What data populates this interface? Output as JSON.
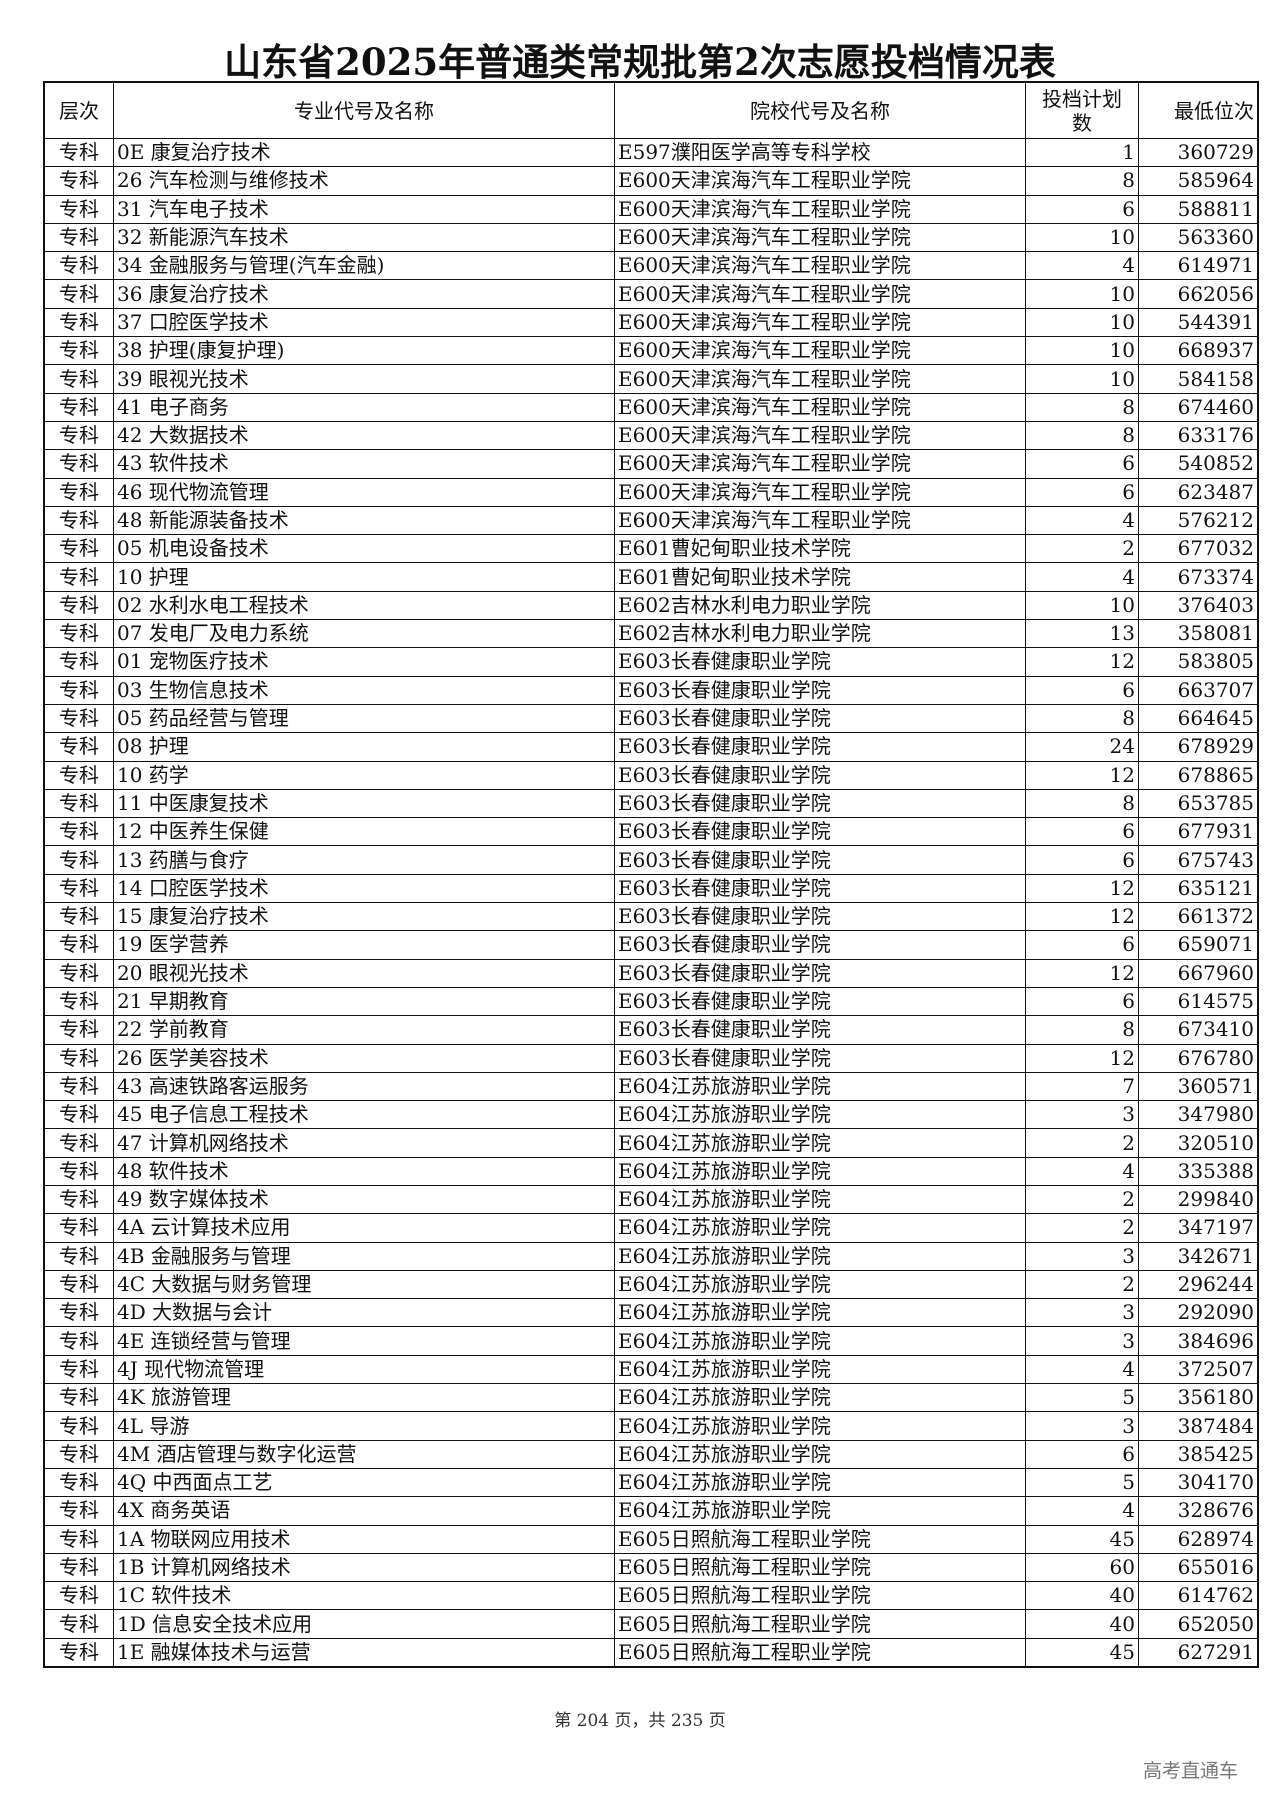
{
  "title": "山东省2025年普通类常规批第2次志愿投档情况表",
  "headers": [
    "层次",
    "专业代号及名称",
    "院校代号及名称",
    "投档计划数",
    "最低位次"
  ],
  "rows": [
    [
      "专科",
      "0E 康复治疗技术",
      "E597濮阳医学高等专科学校",
      "1",
      "360729"
    ],
    [
      "专科",
      "26 汽车检测与维修技术",
      "E600天津滨海汽车工程职业学院",
      "8",
      "585964"
    ],
    [
      "专科",
      "31 汽车电子技术",
      "E600天津滨海汽车工程职业学院",
      "6",
      "588811"
    ],
    [
      "专科",
      "32 新能源汽车技术",
      "E600天津滨海汽车工程职业学院",
      "10",
      "563360"
    ],
    [
      "专科",
      "34 金融服务与管理(汽车金融)",
      "E600天津滨海汽车工程职业学院",
      "4",
      "614971"
    ],
    [
      "专科",
      "36 康复治疗技术",
      "E600天津滨海汽车工程职业学院",
      "10",
      "662056"
    ],
    [
      "专科",
      "37 口腔医学技术",
      "E600天津滨海汽车工程职业学院",
      "10",
      "544391"
    ],
    [
      "专科",
      "38 护理(康复护理)",
      "E600天津滨海汽车工程职业学院",
      "10",
      "668937"
    ],
    [
      "专科",
      "39 眼视光技术",
      "E600天津滨海汽车工程职业学院",
      "10",
      "584158"
    ],
    [
      "专科",
      "41 电子商务",
      "E600天津滨海汽车工程职业学院",
      "8",
      "674460"
    ],
    [
      "专科",
      "42 大数据技术",
      "E600天津滨海汽车工程职业学院",
      "8",
      "633176"
    ],
    [
      "专科",
      "43 软件技术",
      "E600天津滨海汽车工程职业学院",
      "6",
      "540852"
    ],
    [
      "专科",
      "46 现代物流管理",
      "E600天津滨海汽车工程职业学院",
      "6",
      "623487"
    ],
    [
      "专科",
      "48 新能源装备技术",
      "E600天津滨海汽车工程职业学院",
      "4",
      "576212"
    ],
    [
      "专科",
      "05 机电设备技术",
      "E601曹妃甸职业技术学院",
      "2",
      "677032"
    ],
    [
      "专科",
      "10 护理",
      "E601曹妃甸职业技术学院",
      "4",
      "673374"
    ],
    [
      "专科",
      "02 水利水电工程技术",
      "E602吉林水利电力职业学院",
      "10",
      "376403"
    ],
    [
      "专科",
      "07 发电厂及电力系统",
      "E602吉林水利电力职业学院",
      "13",
      "358081"
    ],
    [
      "专科",
      "01 宠物医疗技术",
      "E603长春健康职业学院",
      "12",
      "583805"
    ],
    [
      "专科",
      "03 生物信息技术",
      "E603长春健康职业学院",
      "6",
      "663707"
    ],
    [
      "专科",
      "05 药品经营与管理",
      "E603长春健康职业学院",
      "8",
      "664645"
    ],
    [
      "专科",
      "08 护理",
      "E603长春健康职业学院",
      "24",
      "678929"
    ],
    [
      "专科",
      "10 药学",
      "E603长春健康职业学院",
      "12",
      "678865"
    ],
    [
      "专科",
      "11 中医康复技术",
      "E603长春健康职业学院",
      "8",
      "653785"
    ],
    [
      "专科",
      "12 中医养生保健",
      "E603长春健康职业学院",
      "6",
      "677931"
    ],
    [
      "专科",
      "13 药膳与食疗",
      "E603长春健康职业学院",
      "6",
      "675743"
    ],
    [
      "专科",
      "14 口腔医学技术",
      "E603长春健康职业学院",
      "12",
      "635121"
    ],
    [
      "专科",
      "15 康复治疗技术",
      "E603长春健康职业学院",
      "12",
      "661372"
    ],
    [
      "专科",
      "19 医学营养",
      "E603长春健康职业学院",
      "6",
      "659071"
    ],
    [
      "专科",
      "20 眼视光技术",
      "E603长春健康职业学院",
      "12",
      "667960"
    ],
    [
      "专科",
      "21 早期教育",
      "E603长春健康职业学院",
      "6",
      "614575"
    ],
    [
      "专科",
      "22 学前教育",
      "E603长春健康职业学院",
      "8",
      "673410"
    ],
    [
      "专科",
      "26 医学美容技术",
      "E603长春健康职业学院",
      "12",
      "676780"
    ],
    [
      "专科",
      "43 高速铁路客运服务",
      "E604江苏旅游职业学院",
      "7",
      "360571"
    ],
    [
      "专科",
      "45 电子信息工程技术",
      "E604江苏旅游职业学院",
      "3",
      "347980"
    ],
    [
      "专科",
      "47 计算机网络技术",
      "E604江苏旅游职业学院",
      "2",
      "320510"
    ],
    [
      "专科",
      "48 软件技术",
      "E604江苏旅游职业学院",
      "4",
      "335388"
    ],
    [
      "专科",
      "49 数字媒体技术",
      "E604江苏旅游职业学院",
      "2",
      "299840"
    ],
    [
      "专科",
      "4A 云计算技术应用",
      "E604江苏旅游职业学院",
      "2",
      "347197"
    ],
    [
      "专科",
      "4B 金融服务与管理",
      "E604江苏旅游职业学院",
      "3",
      "342671"
    ],
    [
      "专科",
      "4C 大数据与财务管理",
      "E604江苏旅游职业学院",
      "2",
      "296244"
    ],
    [
      "专科",
      "4D 大数据与会计",
      "E604江苏旅游职业学院",
      "3",
      "292090"
    ],
    [
      "专科",
      "4E 连锁经营与管理",
      "E604江苏旅游职业学院",
      "3",
      "384696"
    ],
    [
      "专科",
      "4J 现代物流管理",
      "E604江苏旅游职业学院",
      "4",
      "372507"
    ],
    [
      "专科",
      "4K 旅游管理",
      "E604江苏旅游职业学院",
      "5",
      "356180"
    ],
    [
      "专科",
      "4L 导游",
      "E604江苏旅游职业学院",
      "3",
      "387484"
    ],
    [
      "专科",
      "4M 酒店管理与数字化运营",
      "E604江苏旅游职业学院",
      "6",
      "385425"
    ],
    [
      "专科",
      "4Q 中西面点工艺",
      "E604江苏旅游职业学院",
      "5",
      "304170"
    ],
    [
      "专科",
      "4X 商务英语",
      "E604江苏旅游职业学院",
      "4",
      "328676"
    ],
    [
      "专科",
      "1A 物联网应用技术",
      "E605日照航海工程职业学院",
      "45",
      "628974"
    ],
    [
      "专科",
      "1B 计算机网络技术",
      "E605日照航海工程职业学院",
      "60",
      "655016"
    ],
    [
      "专科",
      "1C 软件技术",
      "E605日照航海工程职业学院",
      "40",
      "614762"
    ],
    [
      "专科",
      "1D 信息安全技术应用",
      "E605日照航海工程职业学院",
      "40",
      "652050"
    ],
    [
      "专科",
      "1E 融媒体技术与运营",
      "E605日照航海工程职业学院",
      "45",
      "627291"
    ]
  ],
  "footer": "第 204 页，共 235 页",
  "watermark": "高考直通车"
}
